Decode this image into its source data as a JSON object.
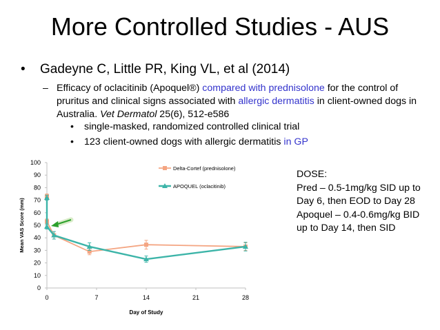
{
  "title": "More Controlled Studies - AUS",
  "bullet_main": "Gadeyne C, Little PR, King VL, et al (2014)",
  "sub_bullet": {
    "part1": "Efficacy of oclacitinib (Apoquel®) ",
    "hl1": "compared with prednisolone",
    "part2": " for the control of pruritus and clinical signs associated with ",
    "hl2": "allergic dermatitis",
    "part3": " in client-owned dogs in Australia. ",
    "journal": "Vet Dermatol",
    "citation": " 25(6), 512-e586"
  },
  "design_bullets": [
    {
      "text": "single-masked, randomized controlled clinical trial",
      "hl": ""
    },
    {
      "text": "123 client-owned dogs with allergic dermatitis ",
      "hl": "in GP"
    }
  ],
  "dose": {
    "heading": "DOSE:",
    "lines": [
      "Pred – 0.5-1mg/kg SID up to",
      "Day 6, then EOD to Day 28",
      "Apoquel – 0.4-0.6mg/kg BID",
      "up to Day 14, then SID"
    ]
  },
  "colors": {
    "title": "#000000",
    "highlight": "#3333cc",
    "pred_series": "#f4a582",
    "apoquel_series": "#3cb4a8",
    "arrow": "#2ca02c"
  },
  "chart_data": {
    "type": "line",
    "title": "",
    "xlabel": "Day of Study",
    "ylabel": "Mean VAS Score (mm)",
    "xlim": [
      0,
      28
    ],
    "ylim": [
      0,
      100
    ],
    "xticks": [
      0,
      7,
      14,
      21,
      28
    ],
    "yticks": [
      0,
      10,
      20,
      30,
      40,
      50,
      60,
      70,
      80,
      90,
      100
    ],
    "legend_position": "top-right",
    "series": [
      {
        "name": "Delta-Cortef (prednisolone)",
        "marker": "square",
        "color": "#f4a582",
        "x": [
          0,
          0,
          1,
          6,
          14,
          28
        ],
        "y": [
          73,
          53,
          42,
          29,
          34.5,
          33
        ],
        "err": [
          2,
          2,
          3,
          2.5,
          3.5,
          3
        ]
      },
      {
        "name": "APOQUEL (oclacitinib)",
        "marker": "triangle",
        "color": "#3cb4a8",
        "x": [
          0,
          0,
          1,
          6,
          14,
          28
        ],
        "y": [
          72,
          49,
          42,
          33,
          23,
          33
        ],
        "err": [
          2,
          2,
          3,
          3,
          2.5,
          3.5
        ]
      }
    ],
    "annotation": "arrow pointing to day-0 drop"
  }
}
